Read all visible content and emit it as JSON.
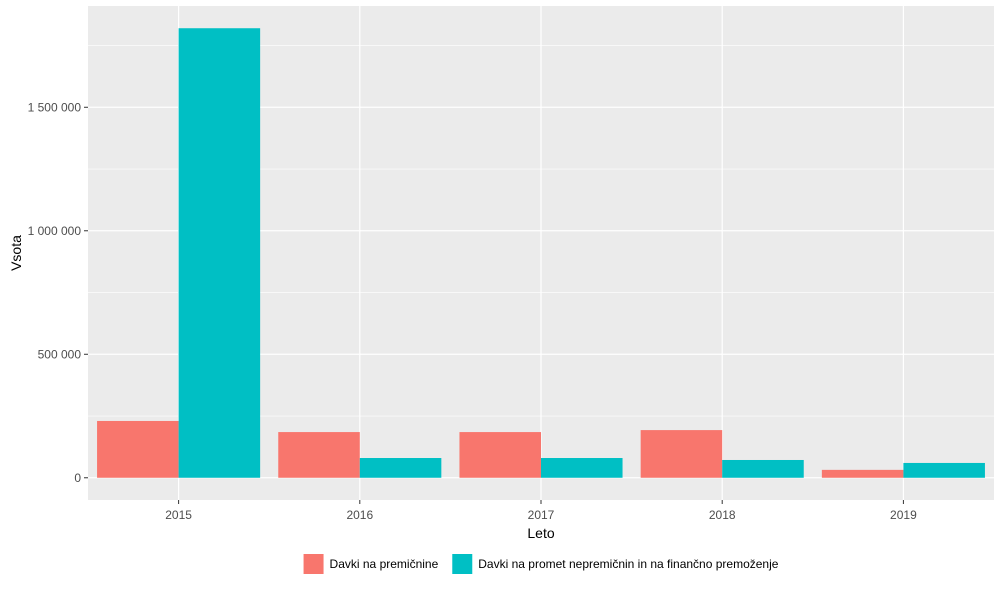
{
  "chart_data": {
    "type": "bar",
    "xlabel": "Leto",
    "ylabel": "Vsota",
    "categories": [
      "2015",
      "2016",
      "2017",
      "2018",
      "2019"
    ],
    "series": [
      {
        "name": "Davki na premičnine",
        "color": "#F8766D",
        "values": [
          230000,
          185000,
          185000,
          193000,
          32000
        ]
      },
      {
        "name": "Davki na promet nepremičnin in na finančno premoženje",
        "color": "#00BFC4",
        "values": [
          1820000,
          80000,
          80000,
          72000,
          60000
        ]
      }
    ],
    "ylim": [
      -90000,
      1910000
    ],
    "yticks": [
      {
        "value": 0,
        "label": "0"
      },
      {
        "value": 500000,
        "label": "500 000"
      },
      {
        "value": 1000000,
        "label": "1 000 000"
      },
      {
        "value": 1500000,
        "label": "1 500 000"
      }
    ],
    "grid": true,
    "legend_position": "bottom",
    "panel_color": "#EBEBEB",
    "grid_color": "#FFFFFF"
  }
}
